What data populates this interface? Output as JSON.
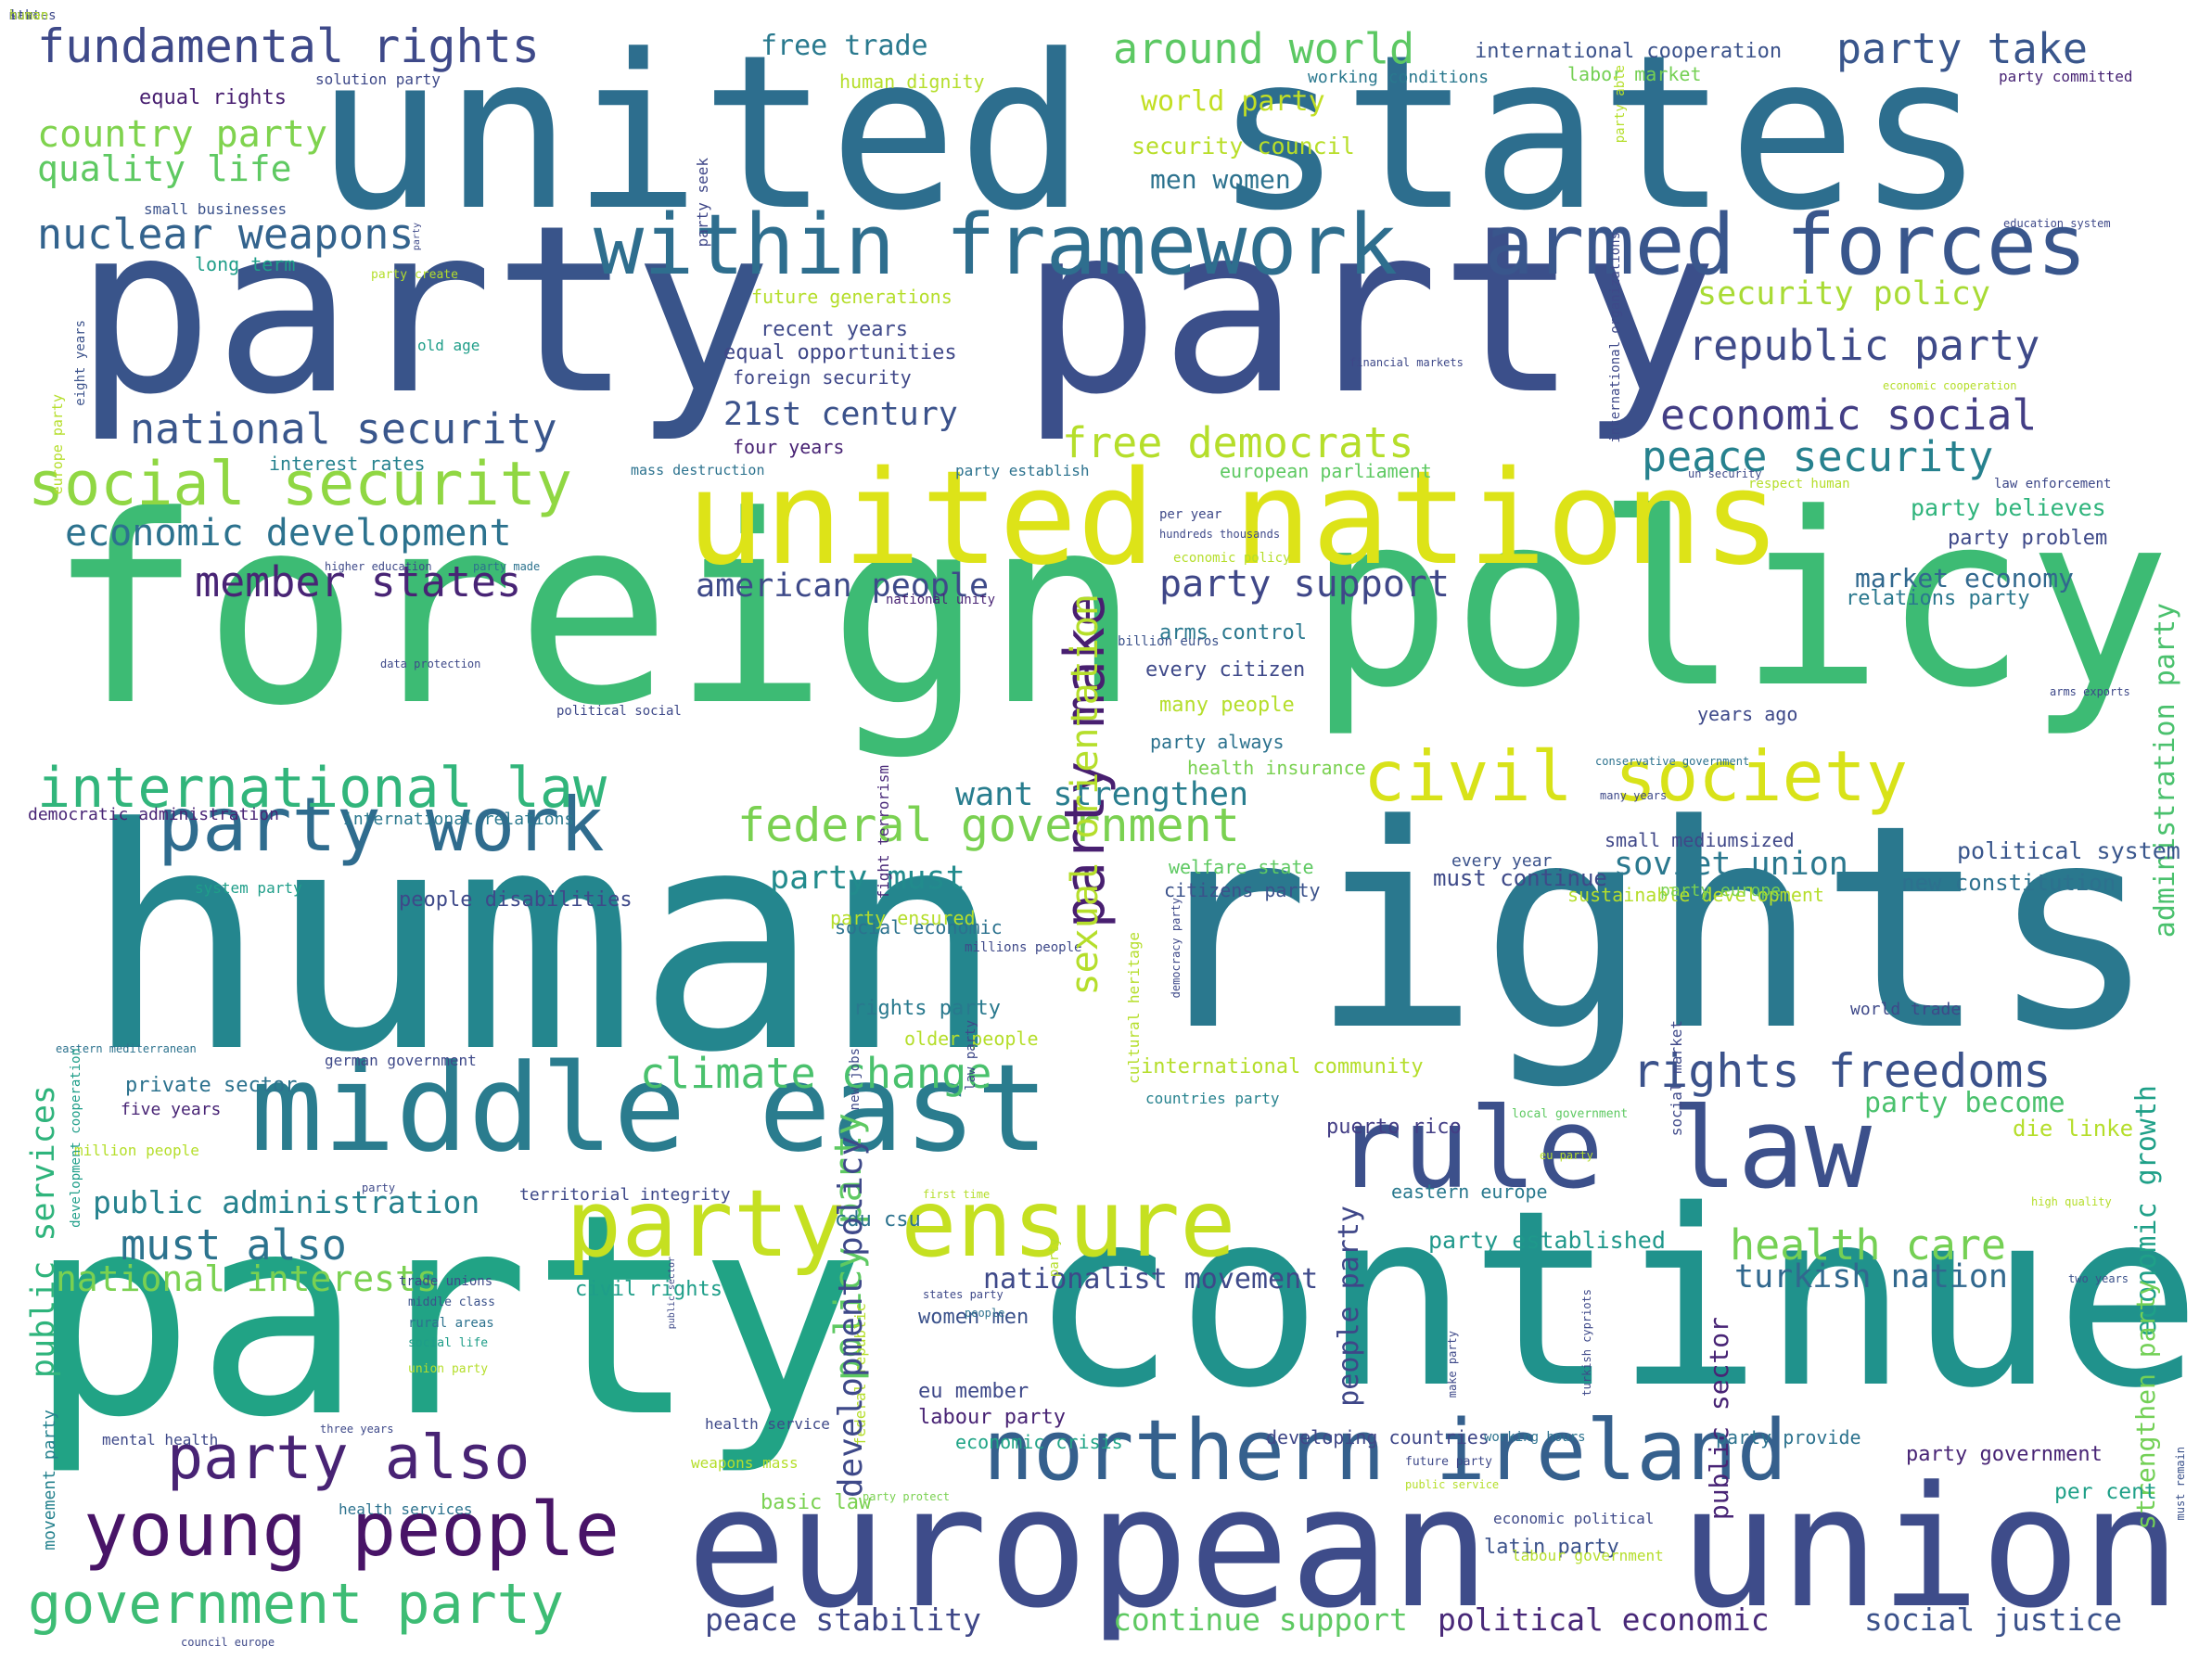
{
  "words": [
    {
      "text": "united states",
      "color": "#2d6e8e"
    },
    {
      "text": "party",
      "color": "#39548a"
    },
    {
      "text": "party",
      "color": "#3b4f8a"
    },
    {
      "text": "foreign",
      "color": "#3dbb74"
    },
    {
      "text": "policy",
      "color": "#3dbb74"
    },
    {
      "text": "human",
      "color": "#24868e"
    },
    {
      "text": "rights",
      "color": "#2a788e"
    },
    {
      "text": "party",
      "color": "#21a385"
    },
    {
      "text": "continue",
      "color": "#20928c"
    },
    {
      "text": "european",
      "color": "#3e4c8a"
    },
    {
      "text": "union",
      "color": "#3e4c8a"
    },
    {
      "text": "united nations",
      "color": "#dde318"
    },
    {
      "text": "middle east",
      "color": "#2a7c8e"
    },
    {
      "text": "rule law",
      "color": "#3c508b"
    },
    {
      "text": "northern ireland",
      "color": "#35608d"
    },
    {
      "text": "within framework",
      "color": "#2e6e8e"
    },
    {
      "text": "armed forces",
      "color": "#39568c"
    },
    {
      "text": "civil society",
      "color": "#d8e219"
    },
    {
      "text": "party work",
      "color": "#2f6c8e"
    },
    {
      "text": "young people",
      "color": "#481467"
    },
    {
      "text": "party also",
      "color": "#482374"
    },
    {
      "text": "government party",
      "color": "#3dbc74"
    },
    {
      "text": "party ensure",
      "color": "#c5e021"
    },
    {
      "text": "international law",
      "color": "#31b57b"
    },
    {
      "text": "social security",
      "color": "#90d743"
    },
    {
      "text": "fundamental rights",
      "color": "#3e4989"
    },
    {
      "text": "around world",
      "color": "#5cc863"
    },
    {
      "text": "party take",
      "color": "#39568c"
    },
    {
      "text": "nuclear weapons",
      "color": "#33638d"
    },
    {
      "text": "national security",
      "color": "#39568c"
    },
    {
      "text": "economic development",
      "color": "#2c728e"
    },
    {
      "text": "member states",
      "color": "#482475"
    },
    {
      "text": "republic party",
      "color": "#3e4a89"
    },
    {
      "text": "economic social",
      "color": "#433e85"
    },
    {
      "text": "peace security",
      "color": "#26818e"
    },
    {
      "text": "federal government",
      "color": "#7ad151"
    },
    {
      "text": "climate change",
      "color": "#4ac16d"
    },
    {
      "text": "rights freedoms",
      "color": "#3b528b"
    },
    {
      "text": "health care",
      "color": "#75d054"
    },
    {
      "text": "must also",
      "color": "#2c738e"
    },
    {
      "text": "national interests",
      "color": "#7ad151"
    },
    {
      "text": "party make",
      "color": "#481f70"
    },
    {
      "text": "party support",
      "color": "#3f4788"
    },
    {
      "text": "american people",
      "color": "#3e4a89"
    },
    {
      "text": "free democrats",
      "color": "#b5de2b"
    },
    {
      "text": "21st century",
      "color": "#3b528b"
    },
    {
      "text": "want strengthen",
      "color": "#287d8e"
    },
    {
      "text": "party must",
      "color": "#228b8d"
    },
    {
      "text": "policy party",
      "color": "#5ec962"
    },
    {
      "text": "peace stability",
      "color": "#3f4788"
    },
    {
      "text": "continue support",
      "color": "#5ec962"
    },
    {
      "text": "political economic",
      "color": "#482878"
    },
    {
      "text": "social justice",
      "color": "#3b528b"
    },
    {
      "text": "turkish nation",
      "color": "#31688e"
    },
    {
      "text": "nationalist movement",
      "color": "#3e4989"
    },
    {
      "text": "soviet union",
      "color": "#2a788e"
    },
    {
      "text": "public administration",
      "color": "#26828e"
    },
    {
      "text": "public services",
      "color": "#2fb47c"
    },
    {
      "text": "administration party",
      "color": "#4ac16d"
    },
    {
      "text": "economic growth",
      "color": "#1fa088"
    },
    {
      "text": "strengthen party",
      "color": "#73d056"
    },
    {
      "text": "country party",
      "color": "#7fd34e"
    },
    {
      "text": "quality life",
      "color": "#5ec962"
    },
    {
      "text": "free trade",
      "color": "#29798e"
    },
    {
      "text": "world party",
      "color": "#c2df23"
    },
    {
      "text": "security council",
      "color": "#b8de29"
    },
    {
      "text": "men women",
      "color": "#2c728e"
    },
    {
      "text": "security policy",
      "color": "#a8db34"
    },
    {
      "text": "market economy",
      "color": "#31688e"
    },
    {
      "text": "relations party",
      "color": "#2a788e"
    },
    {
      "text": "party believes",
      "color": "#2fb47c"
    },
    {
      "text": "party problem",
      "color": "#3e4989"
    },
    {
      "text": "political system",
      "color": "#39568c"
    },
    {
      "text": "new constitution",
      "color": "#2d718e"
    },
    {
      "text": "must continue",
      "color": "#3e4a89"
    },
    {
      "text": "party become",
      "color": "#4ac16d"
    },
    {
      "text": "die linke",
      "color": "#b5de2b"
    },
    {
      "text": "party established",
      "color": "#1f988b"
    },
    {
      "text": "people party",
      "color": "#3f4788"
    },
    {
      "text": "public sector",
      "color": "#482475"
    },
    {
      "text": "puerto rico",
      "color": "#433e85"
    },
    {
      "text": "eastern europe",
      "color": "#29798e"
    },
    {
      "text": "cdu csu",
      "color": "#2c728e"
    },
    {
      "text": "civil rights",
      "color": "#1f9e89"
    },
    {
      "text": "women men",
      "color": "#3b528b"
    },
    {
      "text": "eu member",
      "color": "#3e4989"
    },
    {
      "text": "labour party",
      "color": "#482374"
    },
    {
      "text": "basic law",
      "color": "#7ad151"
    },
    {
      "text": "latin party",
      "color": "#3b528b"
    },
    {
      "text": "per cent",
      "color": "#1fa088"
    },
    {
      "text": "party government",
      "color": "#482475"
    },
    {
      "text": "party provide",
      "color": "#2c728e"
    },
    {
      "text": "developing countries",
      "color": "#3f4788"
    },
    {
      "text": "economic crisis",
      "color": "#20a486"
    },
    {
      "text": "party seek",
      "color": "#3f4788"
    },
    {
      "text": "human dignity",
      "color": "#b5de2b"
    },
    {
      "text": "international cooperation",
      "color": "#3b528b"
    },
    {
      "text": "working conditions",
      "color": "#2a788e"
    },
    {
      "text": "labor market",
      "color": "#75d054"
    },
    {
      "text": "party committed",
      "color": "#482475"
    },
    {
      "text": "equal rights",
      "color": "#481f70"
    },
    {
      "text": "solution party",
      "color": "#3e4989"
    },
    {
      "text": "small businesses",
      "color": "#3b528b"
    },
    {
      "text": "long term",
      "color": "#1f9e89"
    },
    {
      "text": "party create",
      "color": "#b5de2b"
    },
    {
      "text": "future generations",
      "color": "#b5de2b"
    },
    {
      "text": "recent years",
      "color": "#3e4989"
    },
    {
      "text": "equal opportunities",
      "color": "#3f4788"
    },
    {
      "text": "foreign security",
      "color": "#3f4788"
    },
    {
      "text": "four years",
      "color": "#482374"
    },
    {
      "text": "interest rates",
      "color": "#26828e"
    },
    {
      "text": "mass destruction",
      "color": "#2c728e"
    },
    {
      "text": "party establish",
      "color": "#2c728e"
    },
    {
      "text": "european parliament",
      "color": "#5ec962"
    },
    {
      "text": "old age",
      "color": "#1f9e89"
    },
    {
      "text": "eight years",
      "color": "#3b528b"
    },
    {
      "text": "europe party",
      "color": "#b5de2b"
    },
    {
      "text": "arms control",
      "color": "#2a788e"
    },
    {
      "text": "every citizen",
      "color": "#3e4989"
    },
    {
      "text": "many people",
      "color": "#b5de2b"
    },
    {
      "text": "party always",
      "color": "#2c728e"
    },
    {
      "text": "health insurance",
      "color": "#7ad151"
    },
    {
      "text": "billion euros",
      "color": "#3b528b"
    },
    {
      "text": "fight terrorism",
      "color": "#482878"
    },
    {
      "text": "national unity",
      "color": "#482475"
    },
    {
      "text": "sustainable development",
      "color": "#b5de2b"
    },
    {
      "text": "small mediumsized",
      "color": "#3f4788"
    },
    {
      "text": "years ago",
      "color": "#3e4989"
    },
    {
      "text": "welfare state",
      "color": "#5ec962"
    },
    {
      "text": "citizens party",
      "color": "#3b528b"
    },
    {
      "text": "every year",
      "color": "#3b528b"
    },
    {
      "text": "party europe",
      "color": "#7ad151"
    },
    {
      "text": "social economic",
      "color": "#2c728e"
    },
    {
      "text": "rights party",
      "color": "#29798e"
    },
    {
      "text": "older people",
      "color": "#b5de2b"
    },
    {
      "text": "party ensured",
      "color": "#b5de2b"
    },
    {
      "text": "millions people",
      "color": "#3e4989"
    },
    {
      "text": "cultural heritage",
      "color": "#b5de2b"
    },
    {
      "text": "democracy party",
      "color": "#3e4989"
    },
    {
      "text": "international community",
      "color": "#b5de2b"
    },
    {
      "text": "countries party",
      "color": "#26828e"
    },
    {
      "text": "world trade",
      "color": "#3e4989"
    },
    {
      "text": "local government",
      "color": "#5ec962"
    },
    {
      "text": "eu party",
      "color": "#b5de2b"
    },
    {
      "text": "high quality",
      "color": "#b5de2b"
    },
    {
      "text": "two years",
      "color": "#3b528b"
    },
    {
      "text": "must remain",
      "color": "#3b528b"
    },
    {
      "text": "democratic administration",
      "color": "#482475"
    },
    {
      "text": "international relations",
      "color": "#2a788e"
    },
    {
      "text": "system party",
      "color": "#1f9e89"
    },
    {
      "text": "people disabilities",
      "color": "#3e4989"
    },
    {
      "text": "eastern mediterranean",
      "color": "#2c728e"
    },
    {
      "text": "german government",
      "color": "#3e4989"
    },
    {
      "text": "private sector",
      "color": "#2c728e"
    },
    {
      "text": "five years",
      "color": "#482475"
    },
    {
      "text": "million people",
      "color": "#b5de2b"
    },
    {
      "text": "territorial integrity",
      "color": "#3e4989"
    },
    {
      "text": "development cooperation",
      "color": "#1f9e89"
    },
    {
      "text": "movement party",
      "color": "#26828e"
    },
    {
      "text": "trade unions",
      "color": "#3e4989"
    },
    {
      "text": "middle class",
      "color": "#3b528b"
    },
    {
      "text": "rural areas",
      "color": "#2c728e"
    },
    {
      "text": "social life",
      "color": "#1f9e89"
    },
    {
      "text": "union party",
      "color": "#b5de2b"
    },
    {
      "text": "mental health",
      "color": "#3e4989"
    },
    {
      "text": "three years",
      "color": "#3e4989"
    },
    {
      "text": "health services",
      "color": "#2c728e"
    },
    {
      "text": "weapons mass",
      "color": "#b5de2b"
    },
    {
      "text": "health service",
      "color": "#3e4989"
    },
    {
      "text": "federal republic",
      "color": "#b5de2b"
    },
    {
      "text": "party protect",
      "color": "#7ad151"
    },
    {
      "text": "economic political",
      "color": "#3e4989"
    },
    {
      "text": "labour government",
      "color": "#b5de2b"
    },
    {
      "text": "future party",
      "color": "#3e4989"
    },
    {
      "text": "public service",
      "color": "#b5de2b"
    },
    {
      "text": "working hours",
      "color": "#2c728e"
    },
    {
      "text": "turkish cypriots",
      "color": "#3e4989"
    },
    {
      "text": "make party",
      "color": "#3e4989"
    },
    {
      "text": "conservative government",
      "color": "#2c728e"
    },
    {
      "text": "many years",
      "color": "#3e4989"
    },
    {
      "text": "arms exports",
      "color": "#3e4989"
    },
    {
      "text": "economic cooperation",
      "color": "#b5de2b"
    },
    {
      "text": "financial markets",
      "color": "#3e4989"
    },
    {
      "text": "un security",
      "color": "#3e4989"
    },
    {
      "text": "respect human",
      "color": "#b5de2b"
    },
    {
      "text": "law enforcement",
      "color": "#3e4989"
    },
    {
      "text": "education system",
      "color": "#3e4989"
    },
    {
      "text": "per year",
      "color": "#3e4989"
    },
    {
      "text": "hundreds thousands",
      "color": "#3e4989"
    },
    {
      "text": "economic policy",
      "color": "#b5de2b"
    },
    {
      "text": "higher education",
      "color": "#3e4989"
    },
    {
      "text": "party made",
      "color": "#2c728e"
    },
    {
      "text": "data protection",
      "color": "#3e4989"
    },
    {
      "text": "political social",
      "color": "#3e4989"
    },
    {
      "text": "party able",
      "color": "#b5de2b"
    },
    {
      "text": "new jobs",
      "color": "#3e4989"
    },
    {
      "text": "law party",
      "color": "#3e4989"
    },
    {
      "text": "party",
      "color": "#b5de2b"
    },
    {
      "text": "people",
      "color": "#2c728e"
    },
    {
      "text": "states party",
      "color": "#3e4989"
    },
    {
      "text": "public sector",
      "color": "#3e4989"
    },
    {
      "text": "party",
      "color": "#3e4989"
    },
    {
      "text": "first time",
      "color": "#b5de2b"
    },
    {
      "text": "council europe",
      "color": "#3e4989"
    },
    {
      "text": "social market",
      "color": "#3e4989"
    },
    {
      "text": "sexual orientation",
      "color": "#b5de2b"
    },
    {
      "text": "development policy",
      "color": "#3e4989"
    },
    {
      "text": "international organizations",
      "color": "#3e4989"
    },
    {
      "text": "party",
      "color": "#3e4989"
    },
    {
      "text": "make",
      "color": "#3e4989"
    },
    {
      "text": "states",
      "color": "#3e4989"
    },
    {
      "text": "law",
      "color": "#3e4989"
    },
    {
      "text": "human",
      "color": "#b5de2b"
    }
  ]
}
